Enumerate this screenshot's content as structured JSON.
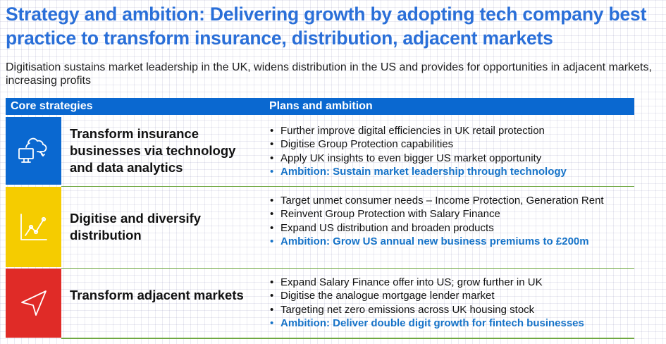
{
  "title": "Strategy and ambition: Delivering growth by adopting tech company best practice to transform insurance, distribution, adjacent markets",
  "subtitle": "Digitisation sustains market leadership in the UK, widens distribution in the US and provides for opportunities in adjacent markets, increasing profits",
  "header": {
    "core_label": "Core strategies",
    "plans_label": "Plans and ambition"
  },
  "rows": [
    {
      "color": "#0a68d0",
      "icon": "cloud-computer-icon",
      "strategy": "Transform insurance businesses via technology and data analytics",
      "plans": [
        "Further improve digital efficiencies in UK retail protection",
        "Digitise Group Protection capabilities",
        "Apply UK insights to even bigger US market opportunity"
      ],
      "ambition": "Ambition: Sustain market leadership through technology"
    },
    {
      "color": "#f5cc00",
      "icon": "line-chart-icon",
      "strategy": "Digitise and diversify distribution",
      "plans": [
        "Target unmet consumer needs – Income Protection, Generation Rent",
        "Reinvent Group Protection with Salary Finance",
        "Expand US distribution and broaden products"
      ],
      "ambition": "Ambition: Grow US annual new business premiums to £200m"
    },
    {
      "color": "#e02b27",
      "icon": "navigation-arrow-icon",
      "strategy": "Transform adjacent markets",
      "plans": [
        "Expand Salary Finance offer into US; grow further in UK",
        "Digitise the analogue mortgage lender market",
        "Targeting net zero emissions across UK housing stock"
      ],
      "ambition": "Ambition: Deliver double digit growth for fintech businesses"
    }
  ]
}
